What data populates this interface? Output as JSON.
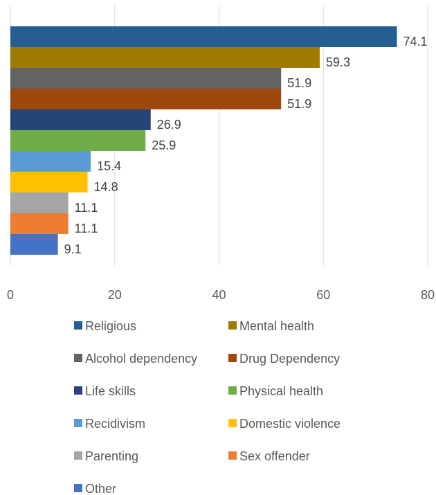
{
  "chart_data": {
    "type": "bar",
    "orientation": "horizontal",
    "title": "",
    "xlabel": "",
    "ylabel": "",
    "xlim": [
      0,
      80
    ],
    "x_ticks": [
      0,
      20,
      40,
      60,
      80
    ],
    "grid": "vertical gridlines on",
    "legend_placement": "bottom",
    "series": [
      {
        "name": "Religious",
        "value": 74.1,
        "color": "#255e91"
      },
      {
        "name": "Mental health",
        "value": 59.3,
        "color": "#9e7b00"
      },
      {
        "name": "Alcohol dependency",
        "value": 51.9,
        "color": "#636363"
      },
      {
        "name": "Drug Dependency",
        "value": 51.9,
        "color": "#9e480e"
      },
      {
        "name": "Life skills",
        "value": 26.9,
        "color": "#264478"
      },
      {
        "name": "Physical health",
        "value": 25.9,
        "color": "#70ad47"
      },
      {
        "name": "Recidivism",
        "value": 15.4,
        "color": "#5b9bd5"
      },
      {
        "name": "Domestic violence",
        "value": 14.8,
        "color": "#ffc000"
      },
      {
        "name": "Parenting",
        "value": 11.1,
        "color": "#a5a5a5"
      },
      {
        "name": "Sex offender",
        "value": 11.1,
        "color": "#ed7d31"
      },
      {
        "name": "Other",
        "value": 9.1,
        "color": "#4472c4"
      }
    ]
  }
}
